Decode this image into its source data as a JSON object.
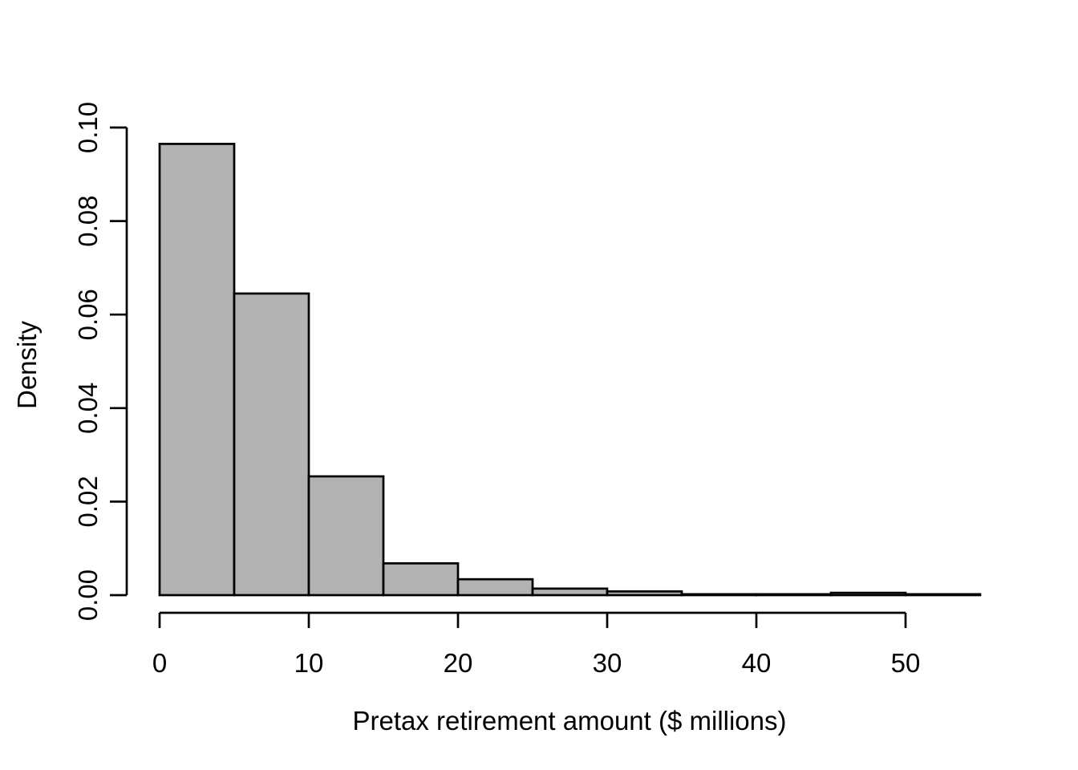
{
  "chart_data": {
    "type": "bar",
    "subtype": "histogram",
    "title": "",
    "xlabel": "Pretax retirement amount ($ millions)",
    "ylabel": "Density",
    "bin_edges": [
      0,
      5,
      10,
      15,
      20,
      25,
      30,
      35,
      40,
      45,
      50,
      55
    ],
    "densities": [
      0.0965,
      0.0645,
      0.0254,
      0.0068,
      0.0034,
      0.0014,
      0.0008,
      0.0002,
      0.0002,
      0.0005,
      0.0002
    ],
    "x_tick_labels": [
      "0",
      "10",
      "20",
      "30",
      "40",
      "50"
    ],
    "x_tick_values": [
      0,
      10,
      20,
      30,
      40,
      50
    ],
    "y_tick_labels": [
      "0.00",
      "0.02",
      "0.04",
      "0.06",
      "0.08",
      "0.10"
    ],
    "y_tick_values": [
      0,
      0.02,
      0.04,
      0.06,
      0.08,
      0.1
    ],
    "xlim": [
      0,
      55
    ],
    "ylim": [
      0,
      0.1
    ],
    "grid": false,
    "legend": false,
    "bar_fill": "#b2b2b2",
    "bar_stroke": "#000000",
    "axis_color": "#000000",
    "text_color": "#000000",
    "background": "#ffffff"
  }
}
